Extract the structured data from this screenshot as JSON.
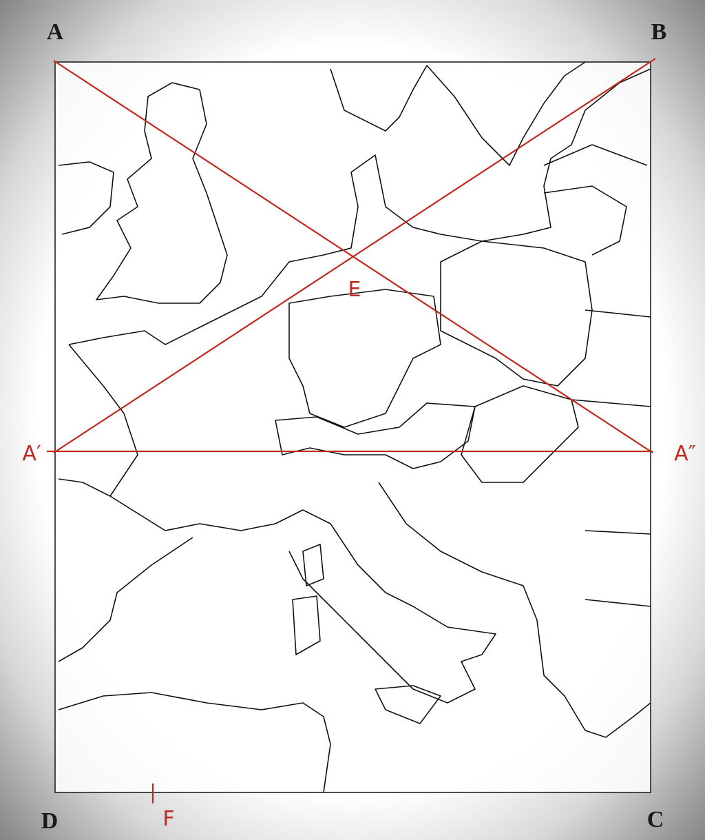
{
  "corner_labels": [
    "A",
    "B",
    "C",
    "D"
  ],
  "construction_labels": [
    "E",
    "F",
    "A′",
    "A″"
  ]
}
